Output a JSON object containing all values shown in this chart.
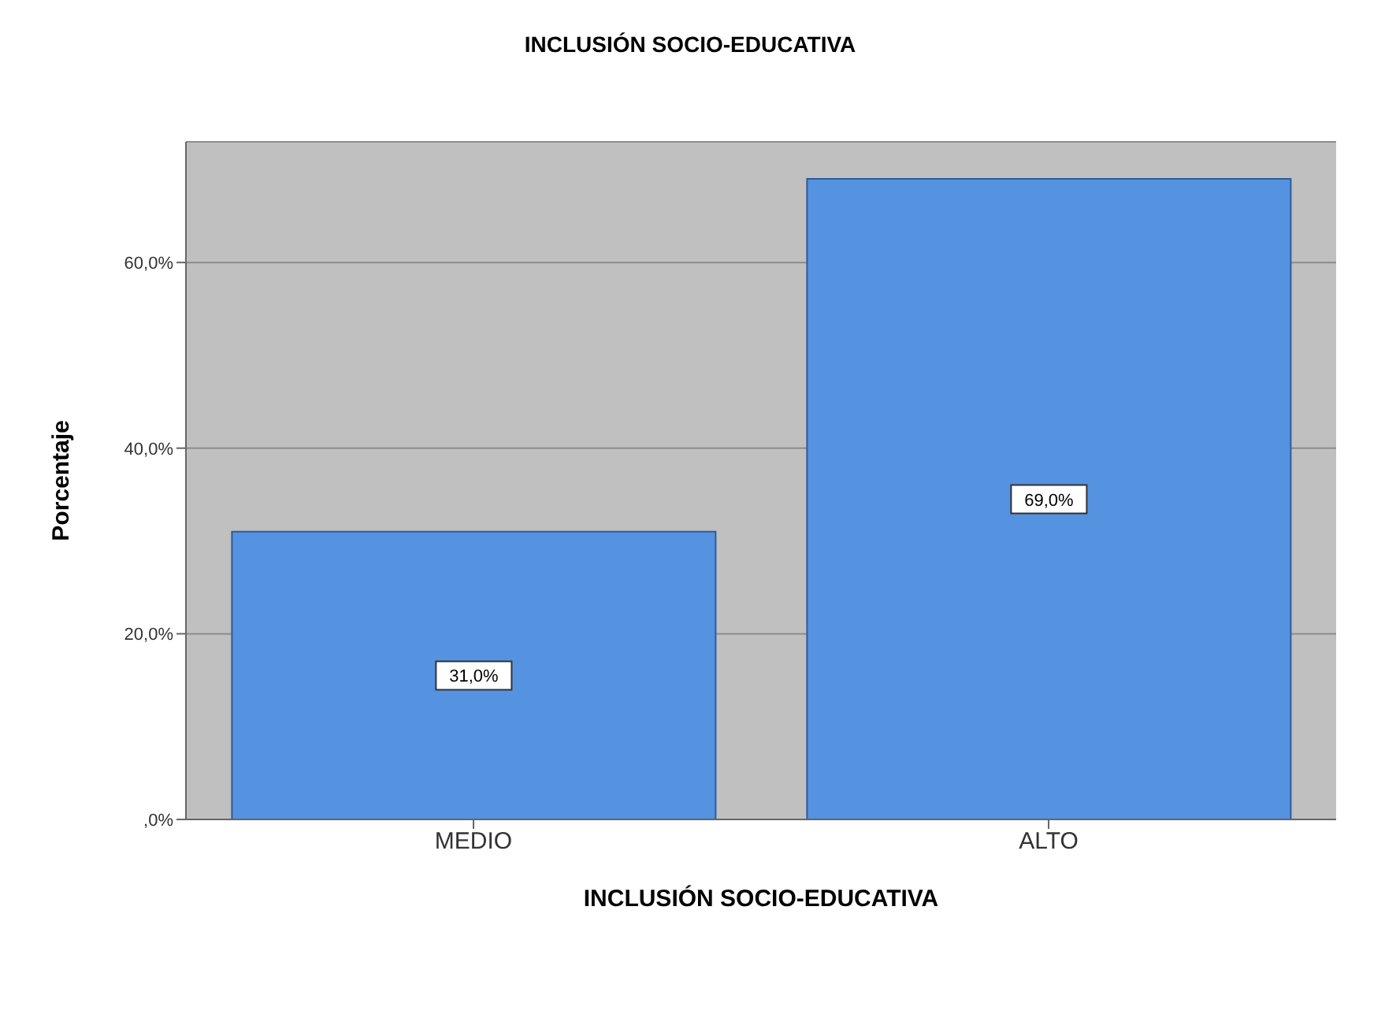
{
  "chart_data": {
    "type": "bar",
    "title": "INCLUSIÓN SOCIO-EDUCATIVA",
    "xlabel": "INCLUSIÓN SOCIO-EDUCATIVA",
    "ylabel": "Porcentaje",
    "categories": [
      "MEDIO",
      "ALTO"
    ],
    "values": [
      31.0,
      69.0
    ],
    "value_labels": [
      "31,0%",
      "69,0%"
    ],
    "color": "#5592e0",
    "ylim": [
      0,
      73
    ],
    "yticks": [
      {
        "value": 0,
        "label": ",0%"
      },
      {
        "value": 20,
        "label": "20,0%"
      },
      {
        "value": 40,
        "label": "40,0%"
      },
      {
        "value": 60,
        "label": "60,0%"
      }
    ],
    "grid": "y"
  }
}
